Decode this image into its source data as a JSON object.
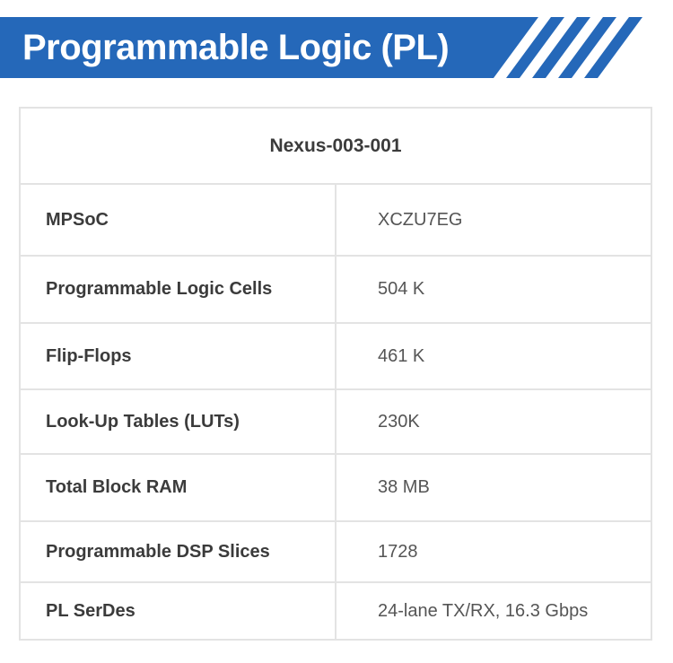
{
  "header": {
    "title": "Programmable Logic (PL)"
  },
  "colors": {
    "banner_blue": "#2568b9",
    "table_border": "#e3e3e3",
    "label_text": "#3b3b3b",
    "value_text": "#555555"
  },
  "table": {
    "model": "Nexus-003-001",
    "rows": [
      {
        "label": "MPSoC",
        "value": "XCZU7EG"
      },
      {
        "label": "Programmable Logic Cells",
        "value": "504 K"
      },
      {
        "label": "Flip-Flops",
        "value": "461 K"
      },
      {
        "label": "Look-Up Tables (LUTs)",
        "value": "230K"
      },
      {
        "label": "Total Block RAM",
        "value": "38 MB"
      },
      {
        "label": "Programmable DSP Slices",
        "value": "1728"
      },
      {
        "label": "PL SerDes",
        "value": "24-lane TX/RX, 16.3 Gbps"
      }
    ]
  }
}
